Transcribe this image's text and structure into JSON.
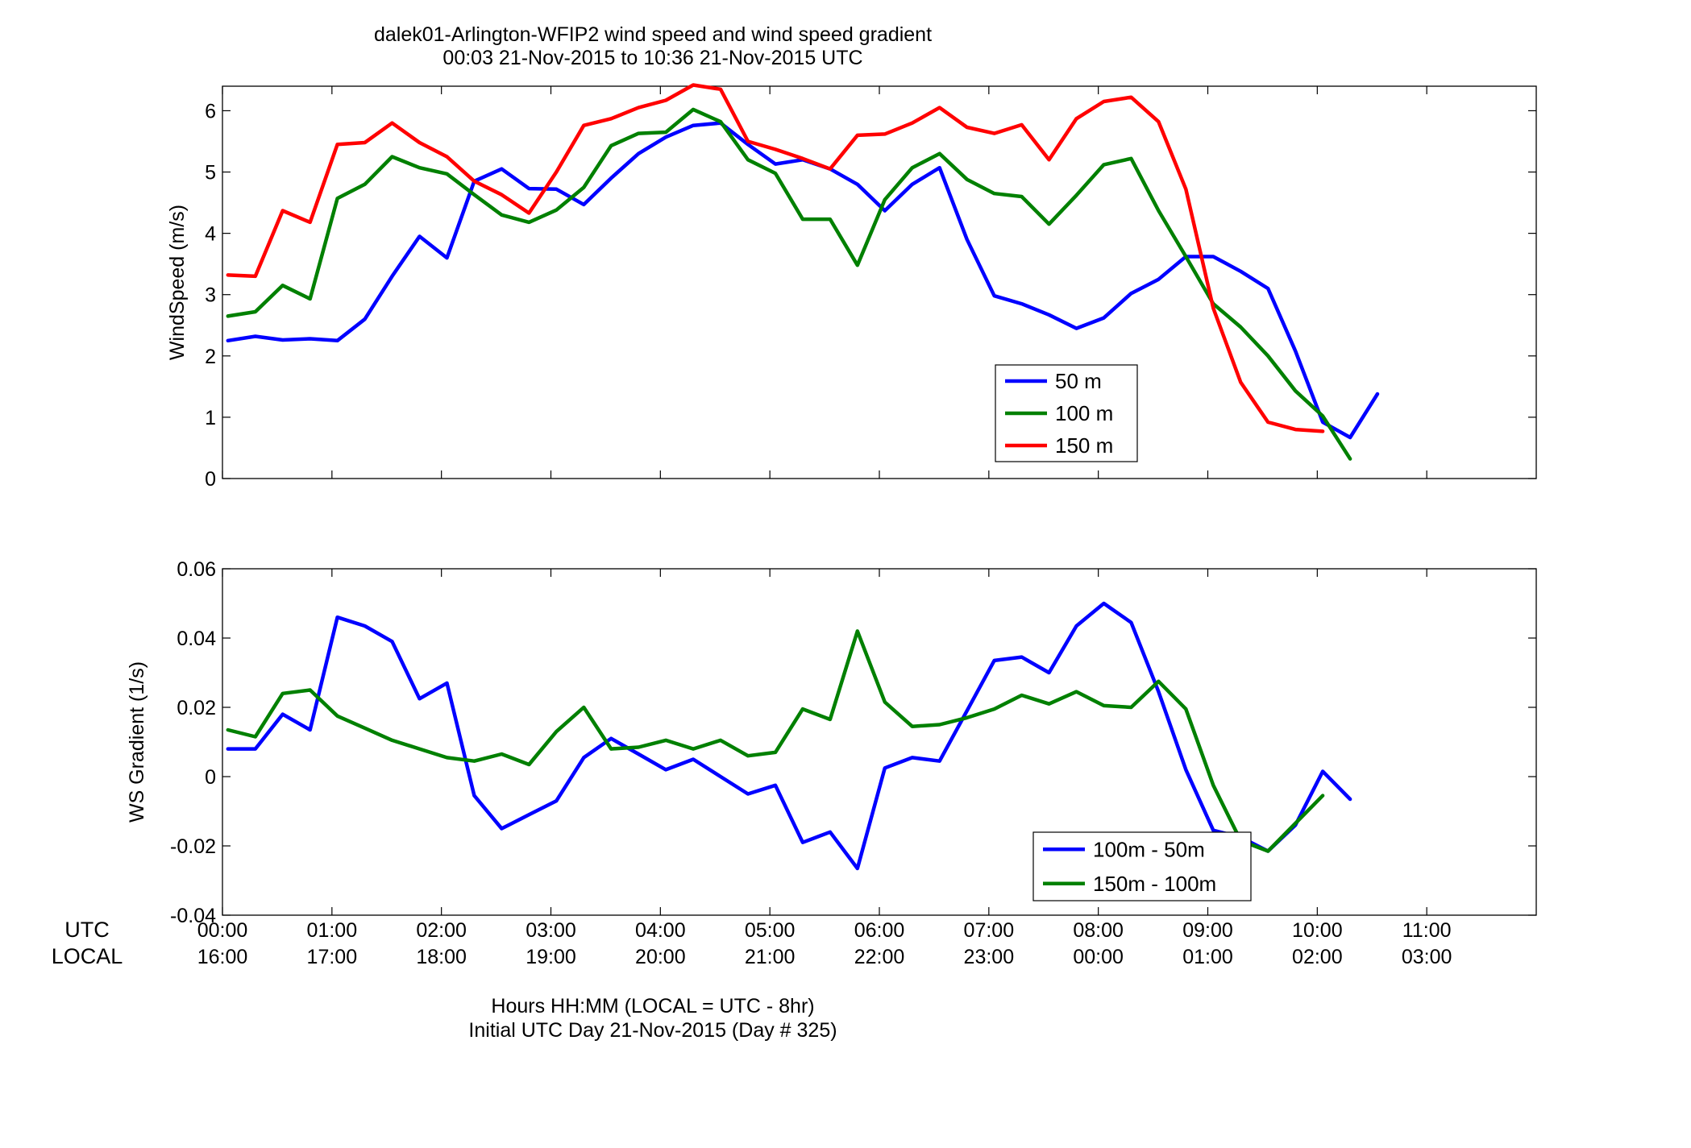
{
  "figure": {
    "title_line1": "dalek01-Arlington-WFIP2  wind speed and wind speed gradient",
    "title_line2": "00:03 21-Nov-2015 to 10:36 21-Nov-2015  UTC",
    "xlabel_line1": "Hours HH:MM  (LOCAL = UTC - 8hr)",
    "xlabel_line2": "Initial UTC Day 21-Nov-2015 (Day # 325)",
    "row_label_utc": "UTC",
    "row_label_local": "LOCAL",
    "utc_ticks": [
      "00:00",
      "01:00",
      "02:00",
      "03:00",
      "04:00",
      "05:00",
      "06:00",
      "07:00",
      "08:00",
      "09:00",
      "10:00",
      "11:00"
    ],
    "local_ticks": [
      "16:00",
      "17:00",
      "18:00",
      "19:00",
      "20:00",
      "21:00",
      "22:00",
      "23:00",
      "00:00",
      "01:00",
      "02:00",
      "03:00"
    ],
    "colors": {
      "blue": "#0000ff",
      "green": "#008000",
      "red": "#ff0000"
    }
  },
  "chart_data": [
    {
      "type": "line",
      "ylabel": "WindSpeed (m/s)",
      "xlim": [
        0,
        12
      ],
      "ylim": [
        0,
        6.4
      ],
      "yticks": [
        0,
        1,
        2,
        3,
        4,
        5,
        6
      ],
      "ytick_labels": [
        "0",
        "1",
        "2",
        "3",
        "4",
        "5",
        "6"
      ],
      "legend_position": "lower-right",
      "series": [
        {
          "name": "50 m",
          "color": "#0000ff",
          "x": [
            0.05,
            0.3,
            0.55,
            0.8,
            1.05,
            1.3,
            1.55,
            1.8,
            2.05,
            2.3,
            2.55,
            2.8,
            3.05,
            3.3,
            3.55,
            3.8,
            4.05,
            4.3,
            4.55,
            4.8,
            5.05,
            5.3,
            5.55,
            5.8,
            6.05,
            6.3,
            6.55,
            6.8,
            7.05,
            7.3,
            7.55,
            7.8,
            8.05,
            8.3,
            8.55,
            8.8,
            9.05,
            9.3,
            9.55,
            9.8,
            10.05,
            10.3,
            10.55
          ],
          "y": [
            2.25,
            2.32,
            2.26,
            2.28,
            2.25,
            2.6,
            3.3,
            3.95,
            3.6,
            4.85,
            5.05,
            4.73,
            4.72,
            4.47,
            4.9,
            5.3,
            5.57,
            5.76,
            5.8,
            5.45,
            5.13,
            5.2,
            5.05,
            4.8,
            4.37,
            4.8,
            5.07,
            3.9,
            2.98,
            2.85,
            2.67,
            2.45,
            2.62,
            3.02,
            3.25,
            3.62,
            3.62,
            3.38,
            3.1,
            2.08,
            0.92,
            0.67,
            1.38
          ]
        },
        {
          "name": "100 m",
          "color": "#008000",
          "x": [
            0.05,
            0.3,
            0.55,
            0.8,
            1.05,
            1.3,
            1.55,
            1.8,
            2.05,
            2.3,
            2.55,
            2.8,
            3.05,
            3.3,
            3.55,
            3.8,
            4.05,
            4.3,
            4.55,
            4.8,
            5.05,
            5.3,
            5.55,
            5.8,
            6.05,
            6.3,
            6.55,
            6.8,
            7.05,
            7.3,
            7.55,
            7.8,
            8.05,
            8.3,
            8.55,
            8.8,
            9.05,
            9.3,
            9.55,
            9.8,
            10.05,
            10.3
          ],
          "y": [
            2.65,
            2.72,
            3.15,
            2.93,
            4.57,
            4.8,
            5.25,
            5.07,
            4.97,
            4.63,
            4.3,
            4.18,
            4.38,
            4.75,
            5.43,
            5.63,
            5.65,
            6.02,
            5.82,
            5.2,
            4.98,
            4.23,
            4.23,
            3.48,
            4.55,
            5.07,
            5.3,
            4.88,
            4.65,
            4.6,
            4.15,
            4.62,
            5.12,
            5.22,
            4.37,
            3.62,
            2.85,
            2.47,
            2.0,
            1.43,
            1.02,
            0.32
          ]
        },
        {
          "name": "150 m",
          "color": "#ff0000",
          "x": [
            0.05,
            0.3,
            0.55,
            0.8,
            1.05,
            1.3,
            1.55,
            1.8,
            2.05,
            2.3,
            2.55,
            2.8,
            3.05,
            3.3,
            3.55,
            3.8,
            4.05,
            4.3,
            4.55,
            4.8,
            5.05,
            5.3,
            5.55,
            5.8,
            6.05,
            6.3,
            6.55,
            6.8,
            7.05,
            7.3,
            7.55,
            7.8,
            8.05,
            8.3,
            8.55,
            8.8,
            9.05,
            9.3,
            9.55,
            9.8,
            10.05
          ],
          "y": [
            3.32,
            3.3,
            4.37,
            4.18,
            5.45,
            5.48,
            5.8,
            5.48,
            5.25,
            4.85,
            4.63,
            4.33,
            5.0,
            5.76,
            5.87,
            6.05,
            6.17,
            6.42,
            6.35,
            5.5,
            5.37,
            5.22,
            5.05,
            5.6,
            5.62,
            5.8,
            6.05,
            5.73,
            5.63,
            5.77,
            5.2,
            5.87,
            6.15,
            6.22,
            5.82,
            4.72,
            2.78,
            1.57,
            0.92,
            0.8,
            0.77
          ]
        }
      ]
    },
    {
      "type": "line",
      "ylabel": "WS Gradient (1/s)",
      "xlim": [
        0,
        12
      ],
      "ylim": [
        -0.04,
        0.06
      ],
      "yticks": [
        -0.04,
        -0.02,
        0,
        0.02,
        0.04,
        0.06
      ],
      "ytick_labels": [
        "-0.04",
        "-0.02",
        "0",
        "0.02",
        "0.04",
        "0.06"
      ],
      "legend_position": "lower-right",
      "series": [
        {
          "name": "100m - 50m",
          "color": "#0000ff",
          "x": [
            0.05,
            0.3,
            0.55,
            0.8,
            1.05,
            1.3,
            1.55,
            1.8,
            2.05,
            2.3,
            2.55,
            2.8,
            3.05,
            3.3,
            3.55,
            3.8,
            4.05,
            4.3,
            4.55,
            4.8,
            5.05,
            5.3,
            5.55,
            5.8,
            6.05,
            6.3,
            6.55,
            6.8,
            7.05,
            7.3,
            7.55,
            7.8,
            8.05,
            8.3,
            8.55,
            8.8,
            9.05,
            9.3,
            9.55,
            9.8,
            10.05,
            10.3
          ],
          "y": [
            0.008,
            0.008,
            0.018,
            0.0135,
            0.046,
            0.0435,
            0.039,
            0.0225,
            0.027,
            -0.0055,
            -0.015,
            -0.011,
            -0.007,
            0.0055,
            0.011,
            0.0065,
            0.002,
            0.005,
            0.0,
            -0.005,
            -0.0025,
            -0.019,
            -0.016,
            -0.0265,
            0.0025,
            0.0055,
            0.0045,
            0.019,
            0.0335,
            0.0345,
            0.03,
            0.0435,
            0.05,
            0.0445,
            0.0245,
            0.002,
            -0.0155,
            -0.0175,
            -0.0215,
            -0.014,
            0.0015,
            -0.0065
          ]
        },
        {
          "name": "150m - 100m",
          "color": "#008000",
          "x": [
            0.05,
            0.3,
            0.55,
            0.8,
            1.05,
            1.3,
            1.55,
            1.8,
            2.05,
            2.3,
            2.55,
            2.8,
            3.05,
            3.3,
            3.55,
            3.8,
            4.05,
            4.3,
            4.55,
            4.8,
            5.05,
            5.3,
            5.55,
            5.8,
            6.05,
            6.3,
            6.55,
            6.8,
            7.05,
            7.3,
            7.55,
            7.8,
            8.05,
            8.3,
            8.55,
            8.8,
            9.05,
            9.3,
            9.55,
            9.8,
            10.05
          ],
          "y": [
            0.0135,
            0.0115,
            0.024,
            0.025,
            0.0175,
            0.014,
            0.0105,
            0.008,
            0.0055,
            0.0045,
            0.0065,
            0.0035,
            0.013,
            0.02,
            0.008,
            0.0085,
            0.0105,
            0.008,
            0.0105,
            0.006,
            0.007,
            0.0195,
            0.0165,
            0.042,
            0.0215,
            0.0145,
            0.015,
            0.017,
            0.0195,
            0.0235,
            0.021,
            0.0245,
            0.0205,
            0.02,
            0.0275,
            0.0195,
            -0.0025,
            -0.0185,
            -0.0215,
            -0.0135,
            -0.0055
          ]
        }
      ]
    }
  ]
}
